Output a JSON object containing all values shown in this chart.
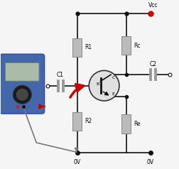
{
  "bg_color": "#f5f5f5",
  "fig_width": 2.53,
  "fig_height": 2.38,
  "dpi": 100,
  "vcc_dot_color": "#cc0000",
  "wire_color": "#111111",
  "resistor_color": "#bbbbbb",
  "resistor_edge": "#888888",
  "arrow_color": "#cc0000",
  "multimeter_bg": "#4466aa",
  "multimeter_border": "#3355aa",
  "multimeter_screen": "#aabbaa",
  "multimeter_screen_edge": "#668866",
  "knob_color": "#1a1a1a",
  "knob_inner": "#444444",
  "ground_wire": "#777777",
  "label_R1": "R1",
  "label_R2": "R2",
  "label_Rc": "Rc",
  "label_Re": "Re",
  "label_C1": "C1",
  "label_C2": "C2",
  "label_Vcc": "Vcc",
  "label_0V_left": "0V",
  "label_0V_right": "0V",
  "label_B": "B",
  "label_C": "C",
  "label_E": "E",
  "cap_plate_color": "#999999",
  "transistor_fill": "#e0e0e0",
  "transistor_edge": "#333333"
}
